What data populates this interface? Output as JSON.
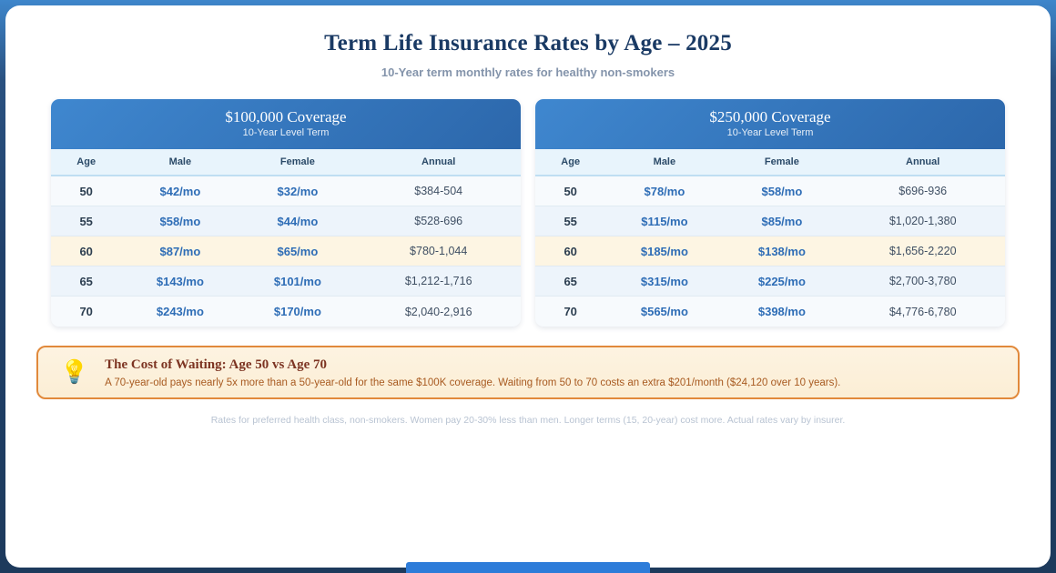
{
  "page": {
    "title": "Term Life Insurance Rates by Age – 2025",
    "subtitle": "10-Year term monthly rates for healthy non-smokers",
    "footnote": "Rates for preferred health class, non-smokers. Women pay 20-30% less than men. Longer terms (15, 20-year) cost more. Actual rates vary by insurer."
  },
  "columns": [
    "Age",
    "Male",
    "Female",
    "Annual"
  ],
  "tables": [
    {
      "title": "$100,000 Coverage",
      "subtitle": "10-Year Level Term",
      "rows": [
        {
          "age": "50",
          "male": "$42/mo",
          "female": "$32/mo",
          "annual": "$384-504",
          "highlight": false
        },
        {
          "age": "55",
          "male": "$58/mo",
          "female": "$44/mo",
          "annual": "$528-696",
          "highlight": false
        },
        {
          "age": "60",
          "male": "$87/mo",
          "female": "$65/mo",
          "annual": "$780-1,044",
          "highlight": true
        },
        {
          "age": "65",
          "male": "$143/mo",
          "female": "$101/mo",
          "annual": "$1,212-1,716",
          "highlight": false
        },
        {
          "age": "70",
          "male": "$243/mo",
          "female": "$170/mo",
          "annual": "$2,040-2,916",
          "highlight": false
        }
      ]
    },
    {
      "title": "$250,000 Coverage",
      "subtitle": "10-Year Level Term",
      "rows": [
        {
          "age": "50",
          "male": "$78/mo",
          "female": "$58/mo",
          "annual": "$696-936",
          "highlight": false
        },
        {
          "age": "55",
          "male": "$115/mo",
          "female": "$85/mo",
          "annual": "$1,020-1,380",
          "highlight": false
        },
        {
          "age": "60",
          "male": "$185/mo",
          "female": "$138/mo",
          "annual": "$1,656-2,220",
          "highlight": true
        },
        {
          "age": "65",
          "male": "$315/mo",
          "female": "$225/mo",
          "annual": "$2,700-3,780",
          "highlight": false
        },
        {
          "age": "70",
          "male": "$565/mo",
          "female": "$398/mo",
          "annual": "$4,776-6,780",
          "highlight": false
        }
      ]
    }
  ],
  "callout": {
    "icon": "lightbulb-emoji",
    "title": "The Cost of Waiting: Age 50 vs Age 70",
    "body": "A 70-year-old pays nearly 5x more than a 50-year-old for the same $100K coverage. Waiting from 50 to 70 costs an extra $201/month ($24,120 over 10 years)."
  },
  "colors": {
    "outer_navy": "#1d3a5c",
    "outer_top_blue": "#3e86cb",
    "table_header_blue": "#2c67ab",
    "rate_text_blue": "#2e6db6",
    "column_header_bg": "#e8f4fc",
    "highlight_row_cream": "#fdf5e3",
    "callout_border_orange": "#e1893b",
    "callout_bg_cream": "#fcf1dd",
    "callout_title_maroon": "#7c3422",
    "callout_body_orange": "#a85a20",
    "footnote_gray": "#b8c3d2",
    "bottom_bar_blue": "#2d7cd9"
  },
  "chart_data": [
    {
      "type": "table",
      "title": "$100,000 Coverage",
      "subtitle": "10-Year Level Term",
      "columns": [
        "Age",
        "Male",
        "Female",
        "Annual"
      ],
      "rows": [
        [
          "50",
          "$42/mo",
          "$32/mo",
          "$384-504"
        ],
        [
          "55",
          "$58/mo",
          "$44/mo",
          "$528-696"
        ],
        [
          "60",
          "$87/mo",
          "$65/mo",
          "$780-1,044"
        ],
        [
          "65",
          "$143/mo",
          "$101/mo",
          "$1,212-1,716"
        ],
        [
          "70",
          "$243/mo",
          "$170/mo",
          "$2,040-2,916"
        ]
      ],
      "highlighted_row_age": "60"
    },
    {
      "type": "table",
      "title": "$250,000 Coverage",
      "subtitle": "10-Year Level Term",
      "columns": [
        "Age",
        "Male",
        "Female",
        "Annual"
      ],
      "rows": [
        [
          "50",
          "$78/mo",
          "$58/mo",
          "$696-936"
        ],
        [
          "55",
          "$115/mo",
          "$85/mo",
          "$1,020-1,380"
        ],
        [
          "60",
          "$185/mo",
          "$138/mo",
          "$1,656-2,220"
        ],
        [
          "65",
          "$315/mo",
          "$225/mo",
          "$2,700-3,780"
        ],
        [
          "70",
          "$565/mo",
          "$398/mo",
          "$4,776-6,780"
        ]
      ],
      "highlighted_row_age": "60"
    }
  ]
}
